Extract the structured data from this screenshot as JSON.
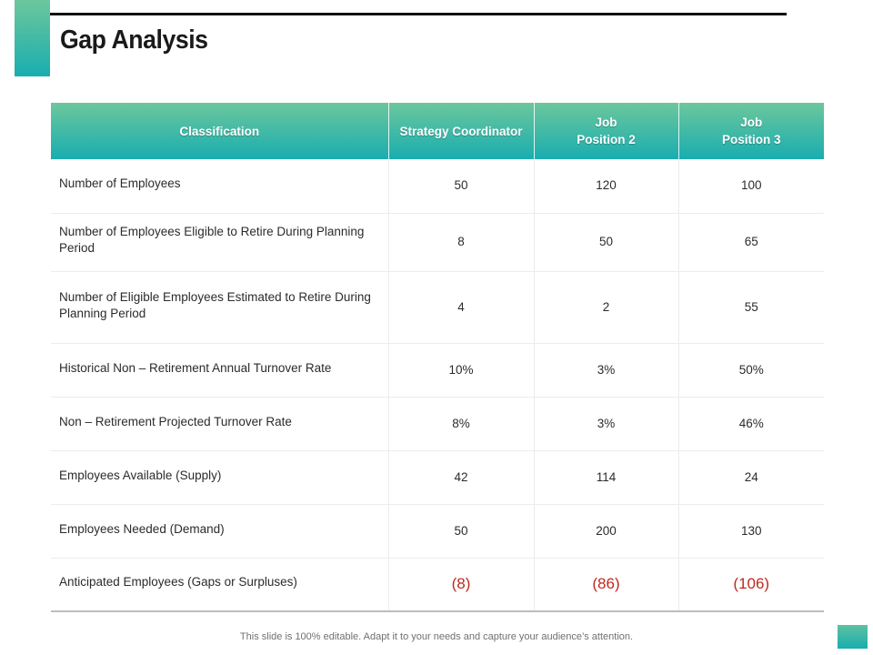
{
  "slide": {
    "title": "Gap Analysis",
    "footer": "This slide is 100% editable. Adapt it to your needs and capture your audience’s attention."
  },
  "theme": {
    "accent_gradient_top": "#6cc79c",
    "accent_gradient_bottom": "#19adb0",
    "negative_value_color": "#c0281f"
  },
  "table": {
    "headers": [
      {
        "line1": "Classification",
        "line2": ""
      },
      {
        "line1": "Strategy Coordinator",
        "line2": ""
      },
      {
        "line1": "Job",
        "line2": "Position 2"
      },
      {
        "line1": "Job",
        "line2": "Position 3"
      }
    ],
    "rows": [
      {
        "label": "Number of Employees",
        "values": [
          "50",
          "120",
          "100"
        ]
      },
      {
        "label": "Number of Employees Eligible to Retire During Planning Period",
        "values": [
          "8",
          "50",
          "65"
        ]
      },
      {
        "label": "Number of Eligible Employees Estimated to Retire During Planning Period",
        "values": [
          "4",
          "2",
          "55"
        ]
      },
      {
        "label": "Historical Non – Retirement Annual Turnover Rate",
        "values": [
          "10%",
          "3%",
          "50%"
        ]
      },
      {
        "label": "Non – Retirement Projected Turnover Rate",
        "values": [
          "8%",
          "3%",
          "46%"
        ]
      },
      {
        "label": "Employees Available (Supply)",
        "values": [
          "42",
          "114",
          "24"
        ]
      },
      {
        "label": "Employees Needed (Demand)",
        "values": [
          "50",
          "200",
          "130"
        ]
      },
      {
        "label": "Anticipated Employees (Gaps or Surpluses)",
        "values": [
          "(8)",
          "(86)",
          "(106)"
        ]
      }
    ]
  }
}
